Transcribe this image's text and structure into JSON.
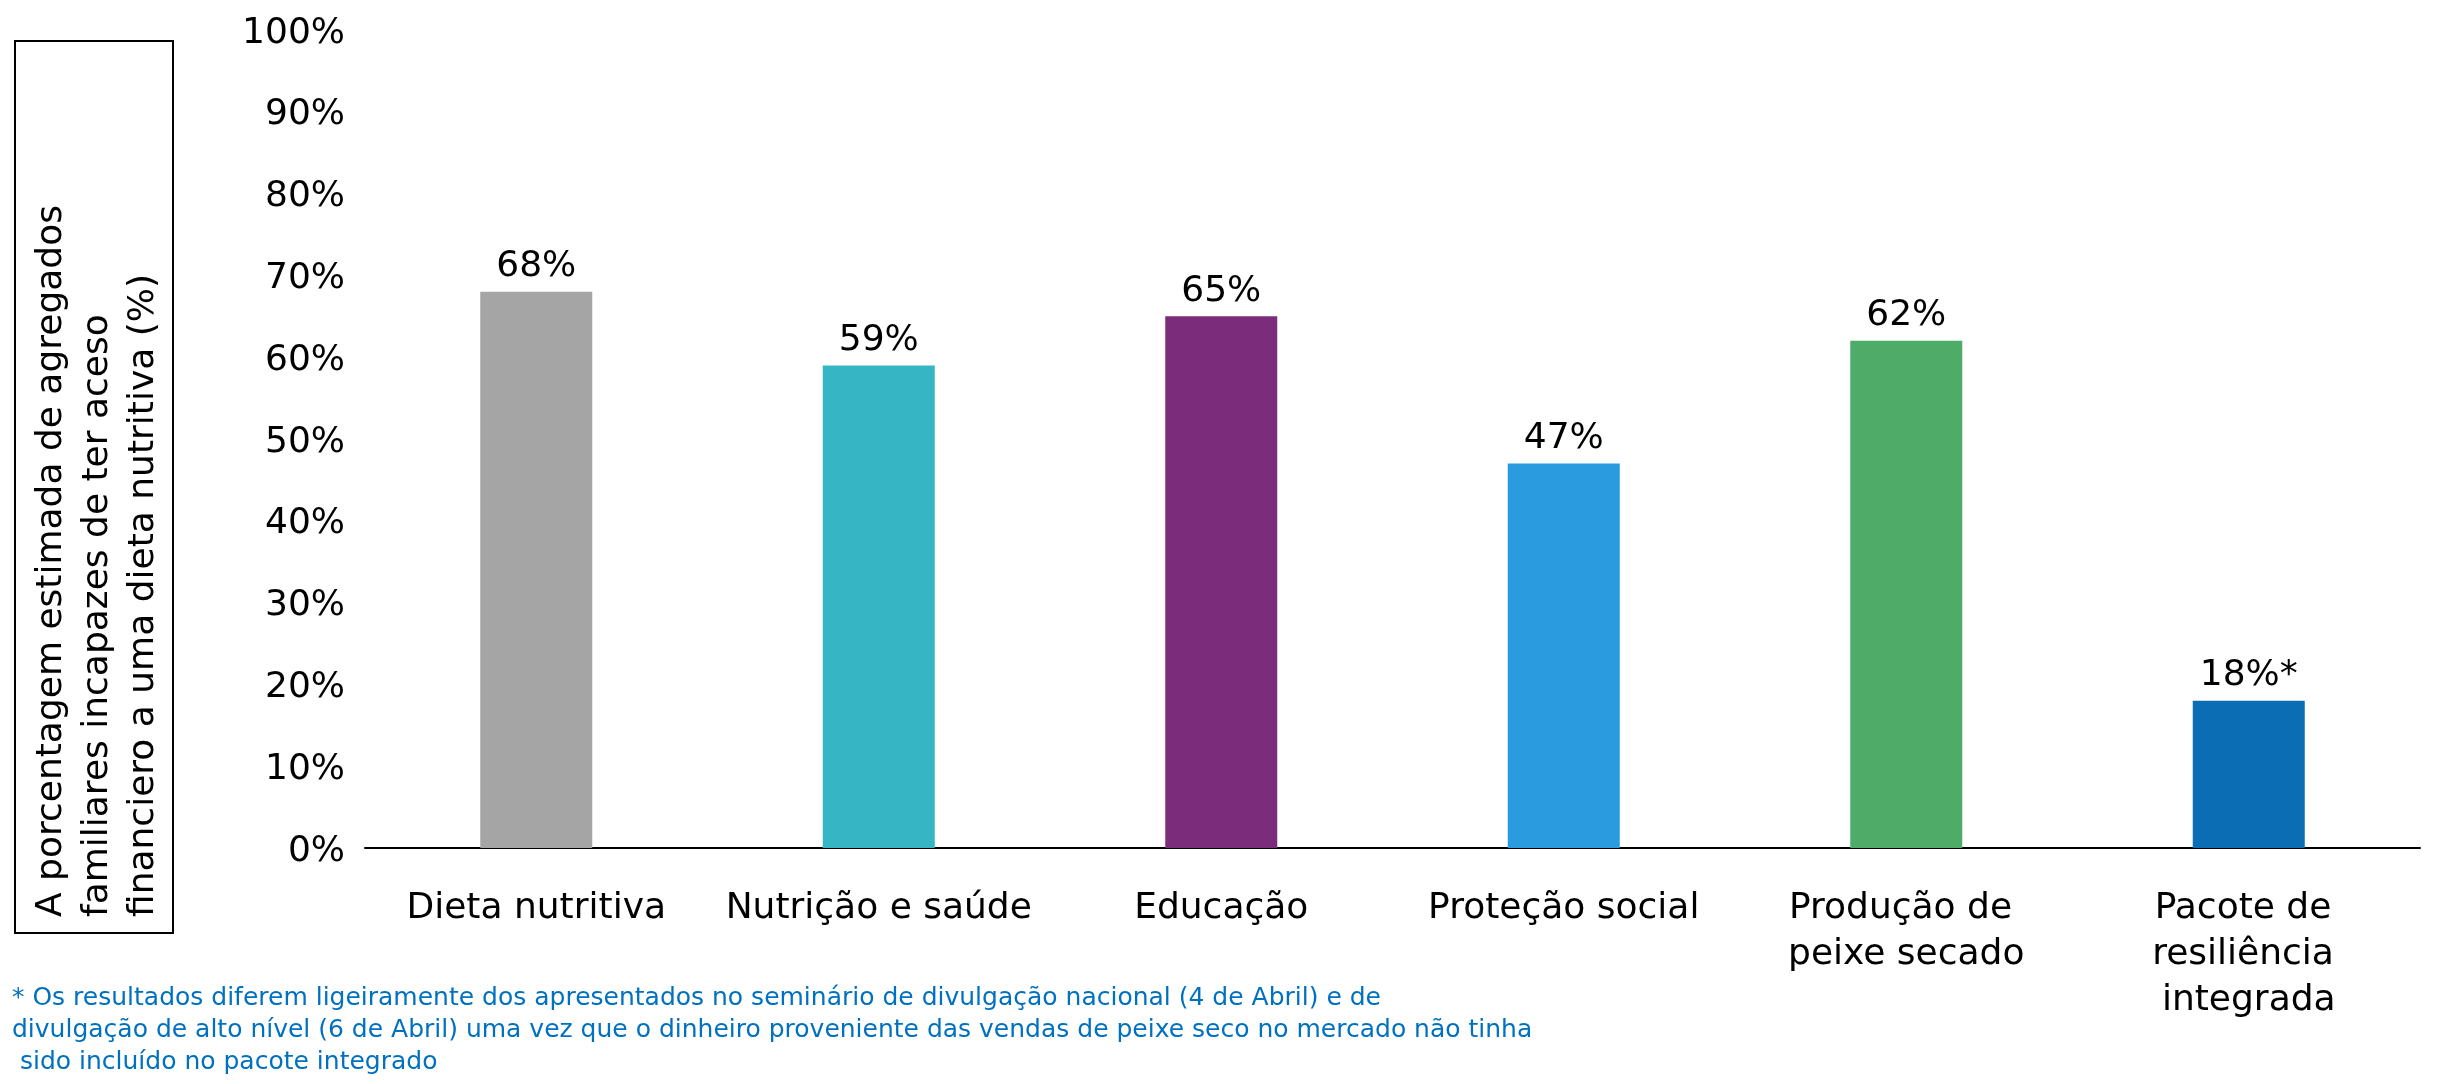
{
  "chart_data": {
    "type": "bar",
    "ylabel": "A porcentagem estimada de agregados familiares incapazes de ter aceso financiero a uma dieta nutritiva (%)",
    "categories": [
      "Dieta nutritiva",
      "Nutrição e saúde",
      "Educação",
      "Proteção social",
      "Produção de peixe secado",
      "Pacote de resiliência integrada"
    ],
    "values": [
      68,
      59,
      65,
      47,
      62,
      18
    ],
    "colors": [
      "#a5a5a5",
      "#36b5c5",
      "#7b2d7b",
      "#2b9be0",
      "#4fab68",
      "#0b6db3"
    ],
    "value_labels": [
      "68%",
      "59%",
      "65%",
      "47%",
      "62%",
      "18%*"
    ],
    "ylim": [
      0,
      100
    ],
    "yticks": [
      {
        "value": 0,
        "label": "0%"
      },
      {
        "value": 10,
        "label": "10%"
      },
      {
        "value": 20,
        "label": "20%"
      },
      {
        "value": 30,
        "label": "30%"
      },
      {
        "value": 40,
        "label": "40%"
      },
      {
        "value": 50,
        "label": "50%"
      },
      {
        "value": 60,
        "label": "60%"
      },
      {
        "value": 70,
        "label": "70%"
      },
      {
        "value": 80,
        "label": "80%"
      },
      {
        "value": 90,
        "label": "90%"
      },
      {
        "value": 100,
        "label": "100%"
      }
    ],
    "annotations": [
      "* Os resultados diferem ligeiramente dos apresentados no seminário de divulgação nacional (4 de Abril) e de divulgação de alto nível (6 de Abril) uma vez que o dinheiro proveniente das vendas de peixe seco no mercado não tinha sido incluído no pacote integrado"
    ],
    "grid": false
  }
}
